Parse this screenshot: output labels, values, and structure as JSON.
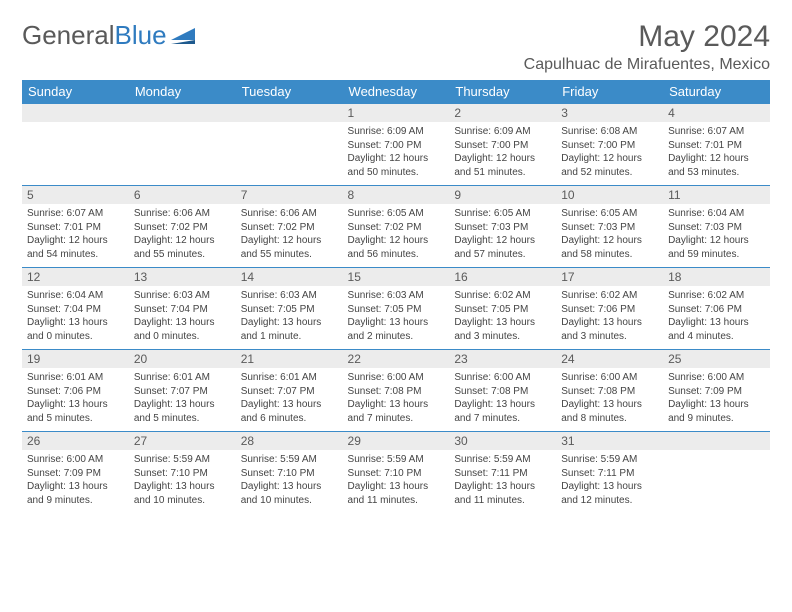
{
  "logo": {
    "text1": "General",
    "text2": "Blue"
  },
  "title": "May 2024",
  "location": "Capulhuac de Mirafuentes, Mexico",
  "colors": {
    "header_bg": "#3b8bc8",
    "header_text": "#ffffff",
    "daynum_bg": "#ececec",
    "border": "#3b8bc8",
    "text": "#5a5a5a"
  },
  "weekdays": [
    "Sunday",
    "Monday",
    "Tuesday",
    "Wednesday",
    "Thursday",
    "Friday",
    "Saturday"
  ],
  "weeks": [
    [
      {
        "n": "",
        "lines": []
      },
      {
        "n": "",
        "lines": []
      },
      {
        "n": "",
        "lines": []
      },
      {
        "n": "1",
        "lines": [
          "Sunrise: 6:09 AM",
          "Sunset: 7:00 PM",
          "Daylight: 12 hours",
          "and 50 minutes."
        ]
      },
      {
        "n": "2",
        "lines": [
          "Sunrise: 6:09 AM",
          "Sunset: 7:00 PM",
          "Daylight: 12 hours",
          "and 51 minutes."
        ]
      },
      {
        "n": "3",
        "lines": [
          "Sunrise: 6:08 AM",
          "Sunset: 7:00 PM",
          "Daylight: 12 hours",
          "and 52 minutes."
        ]
      },
      {
        "n": "4",
        "lines": [
          "Sunrise: 6:07 AM",
          "Sunset: 7:01 PM",
          "Daylight: 12 hours",
          "and 53 minutes."
        ]
      }
    ],
    [
      {
        "n": "5",
        "lines": [
          "Sunrise: 6:07 AM",
          "Sunset: 7:01 PM",
          "Daylight: 12 hours",
          "and 54 minutes."
        ]
      },
      {
        "n": "6",
        "lines": [
          "Sunrise: 6:06 AM",
          "Sunset: 7:02 PM",
          "Daylight: 12 hours",
          "and 55 minutes."
        ]
      },
      {
        "n": "7",
        "lines": [
          "Sunrise: 6:06 AM",
          "Sunset: 7:02 PM",
          "Daylight: 12 hours",
          "and 55 minutes."
        ]
      },
      {
        "n": "8",
        "lines": [
          "Sunrise: 6:05 AM",
          "Sunset: 7:02 PM",
          "Daylight: 12 hours",
          "and 56 minutes."
        ]
      },
      {
        "n": "9",
        "lines": [
          "Sunrise: 6:05 AM",
          "Sunset: 7:03 PM",
          "Daylight: 12 hours",
          "and 57 minutes."
        ]
      },
      {
        "n": "10",
        "lines": [
          "Sunrise: 6:05 AM",
          "Sunset: 7:03 PM",
          "Daylight: 12 hours",
          "and 58 minutes."
        ]
      },
      {
        "n": "11",
        "lines": [
          "Sunrise: 6:04 AM",
          "Sunset: 7:03 PM",
          "Daylight: 12 hours",
          "and 59 minutes."
        ]
      }
    ],
    [
      {
        "n": "12",
        "lines": [
          "Sunrise: 6:04 AM",
          "Sunset: 7:04 PM",
          "Daylight: 13 hours",
          "and 0 minutes."
        ]
      },
      {
        "n": "13",
        "lines": [
          "Sunrise: 6:03 AM",
          "Sunset: 7:04 PM",
          "Daylight: 13 hours",
          "and 0 minutes."
        ]
      },
      {
        "n": "14",
        "lines": [
          "Sunrise: 6:03 AM",
          "Sunset: 7:05 PM",
          "Daylight: 13 hours",
          "and 1 minute."
        ]
      },
      {
        "n": "15",
        "lines": [
          "Sunrise: 6:03 AM",
          "Sunset: 7:05 PM",
          "Daylight: 13 hours",
          "and 2 minutes."
        ]
      },
      {
        "n": "16",
        "lines": [
          "Sunrise: 6:02 AM",
          "Sunset: 7:05 PM",
          "Daylight: 13 hours",
          "and 3 minutes."
        ]
      },
      {
        "n": "17",
        "lines": [
          "Sunrise: 6:02 AM",
          "Sunset: 7:06 PM",
          "Daylight: 13 hours",
          "and 3 minutes."
        ]
      },
      {
        "n": "18",
        "lines": [
          "Sunrise: 6:02 AM",
          "Sunset: 7:06 PM",
          "Daylight: 13 hours",
          "and 4 minutes."
        ]
      }
    ],
    [
      {
        "n": "19",
        "lines": [
          "Sunrise: 6:01 AM",
          "Sunset: 7:06 PM",
          "Daylight: 13 hours",
          "and 5 minutes."
        ]
      },
      {
        "n": "20",
        "lines": [
          "Sunrise: 6:01 AM",
          "Sunset: 7:07 PM",
          "Daylight: 13 hours",
          "and 5 minutes."
        ]
      },
      {
        "n": "21",
        "lines": [
          "Sunrise: 6:01 AM",
          "Sunset: 7:07 PM",
          "Daylight: 13 hours",
          "and 6 minutes."
        ]
      },
      {
        "n": "22",
        "lines": [
          "Sunrise: 6:00 AM",
          "Sunset: 7:08 PM",
          "Daylight: 13 hours",
          "and 7 minutes."
        ]
      },
      {
        "n": "23",
        "lines": [
          "Sunrise: 6:00 AM",
          "Sunset: 7:08 PM",
          "Daylight: 13 hours",
          "and 7 minutes."
        ]
      },
      {
        "n": "24",
        "lines": [
          "Sunrise: 6:00 AM",
          "Sunset: 7:08 PM",
          "Daylight: 13 hours",
          "and 8 minutes."
        ]
      },
      {
        "n": "25",
        "lines": [
          "Sunrise: 6:00 AM",
          "Sunset: 7:09 PM",
          "Daylight: 13 hours",
          "and 9 minutes."
        ]
      }
    ],
    [
      {
        "n": "26",
        "lines": [
          "Sunrise: 6:00 AM",
          "Sunset: 7:09 PM",
          "Daylight: 13 hours",
          "and 9 minutes."
        ]
      },
      {
        "n": "27",
        "lines": [
          "Sunrise: 5:59 AM",
          "Sunset: 7:10 PM",
          "Daylight: 13 hours",
          "and 10 minutes."
        ]
      },
      {
        "n": "28",
        "lines": [
          "Sunrise: 5:59 AM",
          "Sunset: 7:10 PM",
          "Daylight: 13 hours",
          "and 10 minutes."
        ]
      },
      {
        "n": "29",
        "lines": [
          "Sunrise: 5:59 AM",
          "Sunset: 7:10 PM",
          "Daylight: 13 hours",
          "and 11 minutes."
        ]
      },
      {
        "n": "30",
        "lines": [
          "Sunrise: 5:59 AM",
          "Sunset: 7:11 PM",
          "Daylight: 13 hours",
          "and 11 minutes."
        ]
      },
      {
        "n": "31",
        "lines": [
          "Sunrise: 5:59 AM",
          "Sunset: 7:11 PM",
          "Daylight: 13 hours",
          "and 12 minutes."
        ]
      },
      {
        "n": "",
        "lines": []
      }
    ]
  ]
}
